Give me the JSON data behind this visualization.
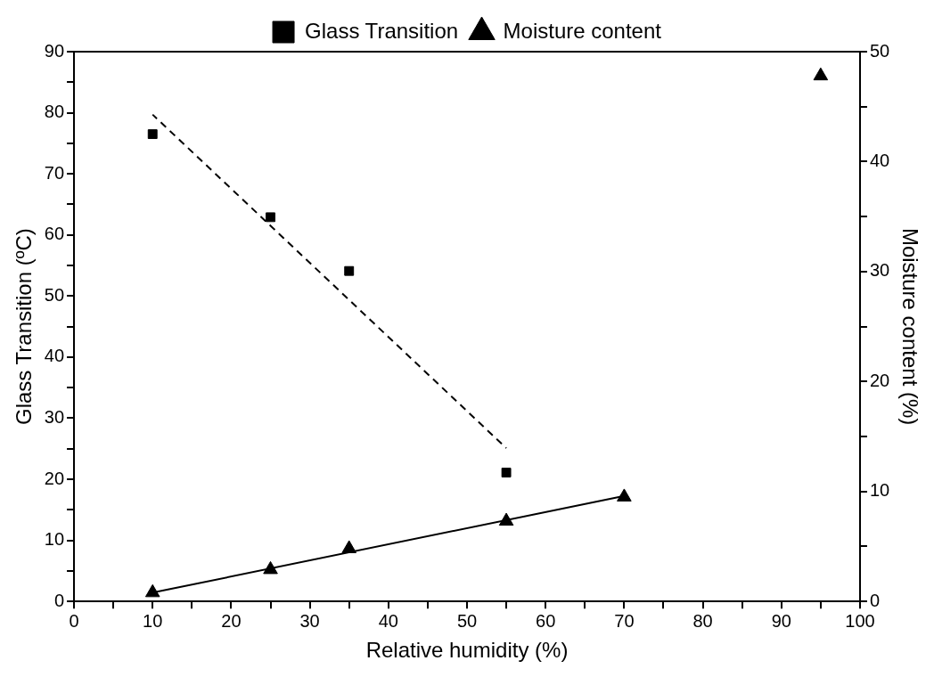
{
  "chart_data": {
    "type": "scatter",
    "xlabel": "Relative humidity (%)",
    "ylabel": "Glass Transition (ºC)",
    "y2label": "Moisture content (%)",
    "xlim": [
      0,
      100
    ],
    "xticks": [
      0,
      {
        "value": 5,
        "label": null
      },
      10,
      {
        "value": 15,
        "label": null
      },
      20,
      {
        "value": 25,
        "label": null
      },
      30,
      {
        "value": 35,
        "label": null
      },
      40,
      {
        "value": 45,
        "label": null
      },
      50,
      {
        "value": 55,
        "label": null
      },
      60,
      {
        "value": 65,
        "label": null
      },
      70,
      {
        "value": 75,
        "label": null
      },
      80,
      {
        "value": 85,
        "label": null
      },
      90,
      {
        "value": 95,
        "label": null
      },
      100
    ],
    "ylim": [
      0,
      90
    ],
    "yticks": [
      0,
      {
        "value": 5,
        "label": null
      },
      10,
      {
        "value": 15,
        "label": null
      },
      20,
      {
        "value": 25,
        "label": null
      },
      30,
      {
        "value": 35,
        "label": null
      },
      40,
      {
        "value": 45,
        "label": null
      },
      50,
      {
        "value": 55,
        "label": null
      },
      60,
      {
        "value": 65,
        "label": null
      },
      70,
      {
        "value": 75,
        "label": null
      },
      80,
      {
        "value": 85,
        "label": null
      },
      90
    ],
    "y2lim": [
      0,
      50
    ],
    "y2ticks": [
      0,
      {
        "value": 5,
        "label": null
      },
      10,
      {
        "value": 15,
        "label": null
      },
      20,
      {
        "value": 25,
        "label": null
      },
      30,
      {
        "value": 35,
        "label": null
      },
      40,
      {
        "value": 45,
        "label": null
      },
      50
    ],
    "grid": false,
    "legend": "top",
    "series": [
      {
        "name": "Glass Transition",
        "type": "scatter",
        "marker": "square",
        "color": "#000000",
        "x": [
          10,
          25,
          35,
          55
        ],
        "values": [
          76.5,
          62.9,
          54.1,
          21.1
        ]
      },
      {
        "name": "Moisture content",
        "type": "scatter",
        "marker": "triangle",
        "color": "#000000",
        "axis": "y2",
        "x": [
          10,
          25,
          35,
          55,
          70,
          95
        ],
        "values": [
          0.8,
          2.9,
          4.8,
          7.3,
          9.5,
          47.8
        ]
      },
      {
        "type": "line",
        "marker": "none",
        "line_style": "dashed",
        "color": "#000000",
        "x": [
          10,
          55
        ],
        "values": [
          79.7,
          25.1
        ]
      },
      {
        "type": "line",
        "marker": "none",
        "line_style": "solid",
        "color": "#000000",
        "axis": "y2",
        "x": [
          10,
          70
        ],
        "values": [
          0.8,
          9.6
        ]
      }
    ]
  }
}
